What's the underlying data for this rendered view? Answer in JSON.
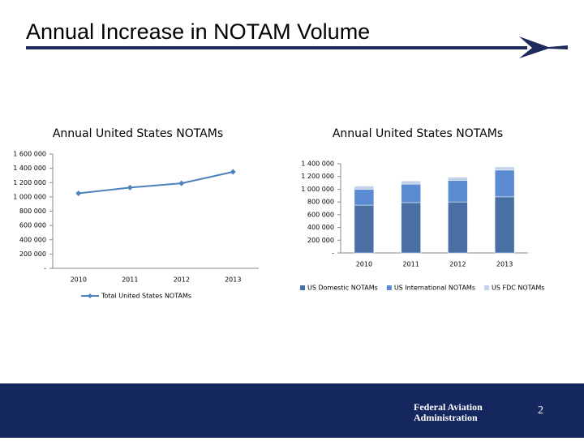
{
  "slide": {
    "title": "Annual Increase in NOTAM Volume",
    "footer": [
      "Federal Aviation",
      "Administration"
    ],
    "page_number": "2"
  },
  "chart_data": [
    {
      "type": "line",
      "title": "Annual United States NOTAMs",
      "categories": [
        "2010",
        "2011",
        "2012",
        "2013"
      ],
      "series": [
        {
          "name": "Total United States NOTAMs",
          "color": "#4f81bd",
          "values": [
            1050000,
            1130000,
            1190000,
            1350000
          ]
        }
      ],
      "ylim": [
        0,
        1600000
      ],
      "yticks": [
        {
          "value": 0,
          "label": "-"
        },
        {
          "value": 200000,
          "label": "200 000"
        },
        {
          "value": 400000,
          "label": "400 000"
        },
        {
          "value": 600000,
          "label": "600 000"
        },
        {
          "value": 800000,
          "label": "800 000"
        },
        {
          "value": 1000000,
          "label": "1 000 000"
        },
        {
          "value": 1200000,
          "label": "1 200 000"
        },
        {
          "value": 1400000,
          "label": "1 400 000"
        },
        {
          "value": 1600000,
          "label": "1 600 000"
        }
      ],
      "legend": "bottom"
    },
    {
      "type": "stacked-bar",
      "title": "Annual United States NOTAMs",
      "categories": [
        "2010",
        "2011",
        "2012",
        "2013"
      ],
      "series": [
        {
          "name": "US Domestic NOTAMs",
          "color": "#4a6fa5",
          "values": [
            750000,
            790000,
            800000,
            880000
          ]
        },
        {
          "name": "US International NOTAMs",
          "color": "#5b8bd0",
          "values": [
            250000,
            290000,
            340000,
            420000
          ]
        },
        {
          "name": "US FDC NOTAMs",
          "color": "#c3d2ea",
          "values": [
            50000,
            50000,
            50000,
            50000
          ]
        }
      ],
      "ylim": [
        0,
        1400000
      ],
      "yticks": [
        {
          "value": 0,
          "label": "-"
        },
        {
          "value": 200000,
          "label": "200 000"
        },
        {
          "value": 400000,
          "label": "400 000"
        },
        {
          "value": 600000,
          "label": "600 000"
        },
        {
          "value": 800000,
          "label": "800 000"
        },
        {
          "value": 1000000,
          "label": "1 000 000"
        },
        {
          "value": 1200000,
          "label": "1 200 000"
        },
        {
          "value": 1400000,
          "label": "1 400 000"
        }
      ],
      "legend": "bottom"
    }
  ]
}
